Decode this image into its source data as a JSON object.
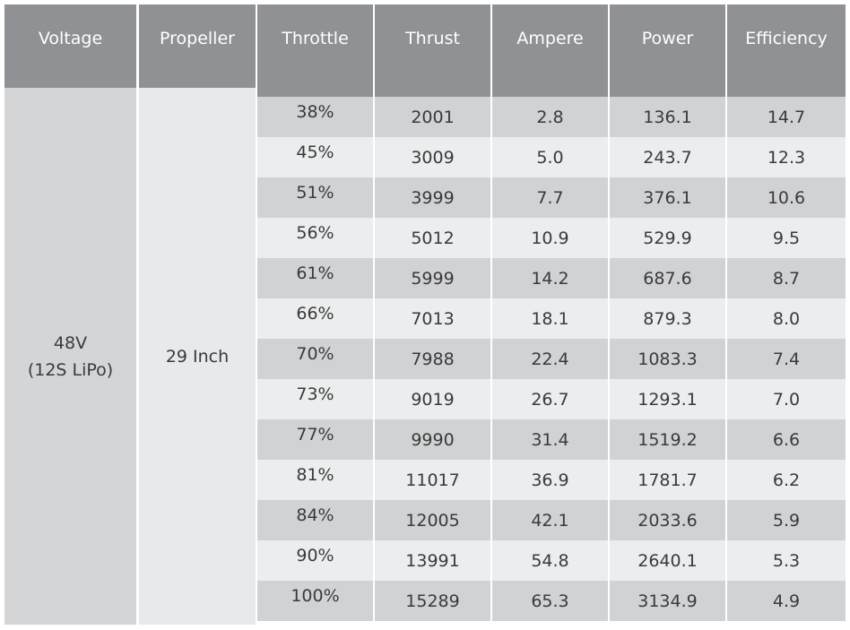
{
  "chart_data": {
    "type": "table",
    "columns": [
      "Voltage",
      "Propeller",
      "Throttle",
      "Thrust",
      "Ampere",
      "Power",
      "Efficiency"
    ],
    "voltage": [
      "48V",
      "(12S LiPo)"
    ],
    "propeller": "29 Inch",
    "rows": [
      {
        "throttle": "38%",
        "thrust": "2001",
        "ampere": "2.8",
        "power": "136.1",
        "efficiency": "14.7"
      },
      {
        "throttle": "45%",
        "thrust": "3009",
        "ampere": "5.0",
        "power": "243.7",
        "efficiency": "12.3"
      },
      {
        "throttle": "51%",
        "thrust": "3999",
        "ampere": "7.7",
        "power": "376.1",
        "efficiency": "10.6"
      },
      {
        "throttle": "56%",
        "thrust": "5012",
        "ampere": "10.9",
        "power": "529.9",
        "efficiency": "9.5"
      },
      {
        "throttle": "61%",
        "thrust": "5999",
        "ampere": "14.2",
        "power": "687.6",
        "efficiency": "8.7"
      },
      {
        "throttle": "66%",
        "thrust": "7013",
        "ampere": "18.1",
        "power": "879.3",
        "efficiency": "8.0"
      },
      {
        "throttle": "70%",
        "thrust": "7988",
        "ampere": "22.4",
        "power": "1083.3",
        "efficiency": "7.4"
      },
      {
        "throttle": "73%",
        "thrust": "9019",
        "ampere": "26.7",
        "power": "1293.1",
        "efficiency": "7.0"
      },
      {
        "throttle": "77%",
        "thrust": "9990",
        "ampere": "31.4",
        "power": "1519.2",
        "efficiency": "6.6"
      },
      {
        "throttle": "81%",
        "thrust": "11017",
        "ampere": "36.9",
        "power": "1781.7",
        "efficiency": "6.2"
      },
      {
        "throttle": "84%",
        "thrust": "12005",
        "ampere": "42.1",
        "power": "2033.6",
        "efficiency": "5.9"
      },
      {
        "throttle": "90%",
        "thrust": "13991",
        "ampere": "54.8",
        "power": "2640.1",
        "efficiency": "5.3"
      },
      {
        "throttle": "100%",
        "thrust": "15289",
        "ampere": "65.3",
        "power": "3134.9",
        "efficiency": "4.9"
      }
    ]
  },
  "colors": {
    "header_bg": "#8f9194",
    "header_text": "#ffffff",
    "row_dark": "#d1d2d4",
    "row_light": "#ecedee",
    "voltage_bg": "#d4d5d7",
    "propeller_bg": "#e8e9ea",
    "text": "#3a3a3a"
  }
}
